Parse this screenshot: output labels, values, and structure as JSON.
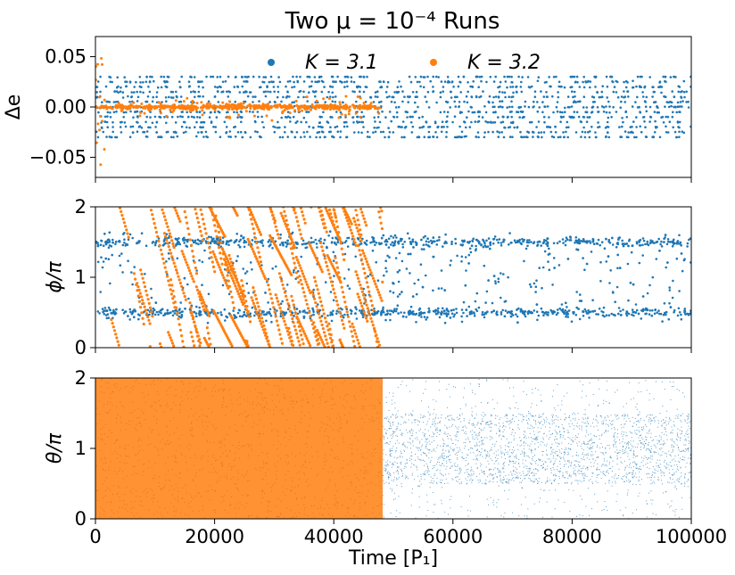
{
  "chart_data": {
    "type": "scatter",
    "title": "Two μ = 10⁻⁴ Runs",
    "xlabel": "Time [P₁]",
    "xlim": [
      0,
      100000
    ],
    "xticks": [
      0,
      20000,
      40000,
      60000,
      80000,
      100000
    ],
    "xtick_labels": [
      "0",
      "20000",
      "40000",
      "60000",
      "80000",
      "100000"
    ],
    "legend": {
      "placement": "top-center",
      "entries": [
        {
          "label": "K = 3.1",
          "color": "#1f77b4"
        },
        {
          "label": "K = 3.2",
          "color": "#ff7f0e"
        }
      ]
    },
    "series": [
      {
        "name": "K = 3.1",
        "color": "#1f77b4",
        "t_range": [
          0,
          100000
        ]
      },
      {
        "name": "K = 3.2",
        "color": "#ff7f0e",
        "t_range": [
          0,
          48200
        ]
      }
    ],
    "panels": [
      {
        "ylabel": "Δe",
        "ylim": [
          -0.07,
          0.07
        ],
        "yticks": [
          -0.05,
          0.0,
          0.05
        ],
        "ytick_labels": [
          "−0.05",
          "0.00",
          "0.05"
        ],
        "series_summary": {
          "K = 3.1": {
            "min": -0.03,
            "max": 0.03,
            "pattern": "horizontal bands"
          },
          "K = 3.2": {
            "center": 0.0,
            "typical_spread": 0.005,
            "pattern": "clustered near 0 with excursions"
          }
        }
      },
      {
        "ylabel": "ϕ/π",
        "ylim": [
          0,
          2
        ],
        "yticks": [
          0,
          1,
          2
        ],
        "ytick_labels": [
          "0",
          "1",
          "2"
        ],
        "series_summary": {
          "K = 3.1": {
            "range": [
              0.3,
              1.7
            ],
            "clusters": [
              0.5,
              1.5
            ]
          },
          "K = 3.2": {
            "range": [
              0,
              2
            ],
            "pattern": "circulating diagonal streaks"
          }
        }
      },
      {
        "ylabel": "θ/π",
        "ylim": [
          0,
          2
        ],
        "yticks": [
          0,
          1,
          2
        ],
        "ytick_labels": [
          "0",
          "1",
          "2"
        ],
        "series_summary": {
          "K = 3.1": {
            "range": [
              0,
              2
            ],
            "dense_band": [
              0.5,
              1.5
            ]
          },
          "K = 3.2": {
            "range": [
              0,
              2
            ],
            "pattern": "uniformly dense"
          }
        }
      }
    ]
  }
}
